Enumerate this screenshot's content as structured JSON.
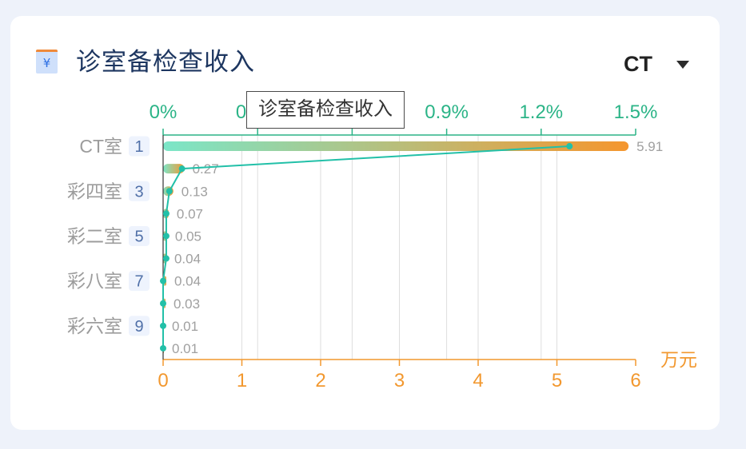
{
  "card": {
    "title": "诊室备检查收入",
    "title_icon": "yuan-document-icon",
    "tooltip": "诊室备检查收入"
  },
  "filter": {
    "selected": "CT",
    "icon": "caret-down-icon"
  },
  "colors": {
    "page_background": "#eef2fa",
    "card_background": "#ffffff",
    "title": "#1d3660",
    "filter_text": "#222222",
    "bar_gradient_start": "#7be6c8",
    "bar_gradient_end": "#f5962e",
    "line": "#22c0a8",
    "top_axis": "#2bb487",
    "bottom_axis": "#f2982f",
    "left_axis": "#333333",
    "grid": "#dedede",
    "category_label": "#9c9c9c",
    "rank_badge_background": "#eef3fd",
    "rank_badge_text": "#5070a8",
    "value_label": "#a0a0a0"
  },
  "chart_data": {
    "type": "bar",
    "orientation": "horizontal",
    "categories": [
      "CT室",
      "",
      "彩四室",
      "",
      "彩二室",
      "",
      "彩八室",
      "",
      "彩六室",
      ""
    ],
    "ranks": [
      "1",
      "",
      "3",
      "",
      "5",
      "",
      "7",
      "",
      "9",
      ""
    ],
    "series": [
      {
        "type": "bar",
        "values": [
          5.91,
          0.27,
          0.13,
          0.07,
          0.05,
          0.04,
          0.04,
          0.03,
          0.01,
          0.01
        ]
      },
      {
        "type": "line",
        "values": [
          1.29,
          0.06,
          0.02,
          0.01,
          0.01,
          0.01,
          0,
          0,
          0,
          0
        ]
      }
    ],
    "x_bottom": {
      "range": [
        0,
        6
      ],
      "ticks": [
        0,
        1,
        2,
        3,
        4,
        5,
        6
      ],
      "tick_labels": [
        "0",
        "1",
        "2",
        "3",
        "4",
        "5",
        "6"
      ],
      "unit": "万元"
    },
    "x_top": {
      "range": [
        0,
        1.5
      ],
      "ticks": [
        0,
        0.3,
        0.6,
        0.9,
        1.2,
        1.5
      ],
      "tick_labels": [
        "0%",
        "0.3%",
        "0.6%",
        "0.9%",
        "1.2%",
        "1.5%"
      ]
    },
    "grid": true
  }
}
